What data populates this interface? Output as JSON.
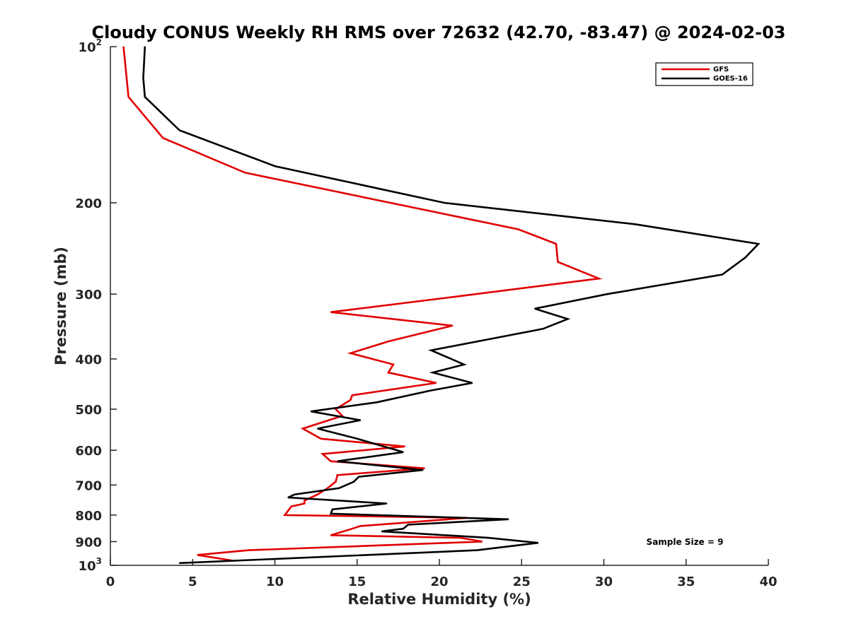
{
  "chart_data": {
    "type": "line",
    "title": "Cloudy CONUS Weekly RH RMS over 72632 (42.70, -83.47) @ 2024-02-03",
    "xlabel": "Relative Humidity (%)",
    "ylabel": "Pressure (mb)",
    "xlim": [
      0,
      40
    ],
    "ylim": [
      100,
      1000
    ],
    "y_scale": "log",
    "y_reversed": true,
    "x_ticks": [
      0,
      5,
      10,
      15,
      20,
      25,
      30,
      35,
      40
    ],
    "y_ticks": [
      {
        "value": 100,
        "base": "10",
        "exp": "2"
      },
      {
        "value": 200,
        "label": "200"
      },
      {
        "value": 300,
        "label": "300"
      },
      {
        "value": 400,
        "label": "400"
      },
      {
        "value": 500,
        "label": "500"
      },
      {
        "value": 600,
        "label": "600"
      },
      {
        "value": 700,
        "label": "700"
      },
      {
        "value": 800,
        "label": "800"
      },
      {
        "value": 900,
        "label": "900"
      },
      {
        "value": 1000,
        "base": "10",
        "exp": "3"
      }
    ],
    "grid": false,
    "legend_position": "top-right",
    "annotation": "Sample Size = 9",
    "series": [
      {
        "name": "GFS",
        "color": "#e00000",
        "points": [
          [
            0.8,
            100
          ],
          [
            1.1,
            125
          ],
          [
            3.2,
            150
          ],
          [
            8.2,
            175
          ],
          [
            24.8,
            225
          ],
          [
            27.1,
            240
          ],
          [
            27.2,
            260
          ],
          [
            29.7,
            280
          ],
          [
            20.4,
            305
          ],
          [
            13.4,
            325
          ],
          [
            20.8,
            345
          ],
          [
            16.9,
            370
          ],
          [
            14.6,
            390
          ],
          [
            17.2,
            410
          ],
          [
            16.9,
            425
          ],
          [
            19.8,
            445
          ],
          [
            14.7,
            470
          ],
          [
            14.6,
            480
          ],
          [
            13.7,
            500
          ],
          [
            14.1,
            515
          ],
          [
            11.7,
            545
          ],
          [
            12.8,
            570
          ],
          [
            17.9,
            590
          ],
          [
            12.9,
            610
          ],
          [
            13.4,
            630
          ],
          [
            19.1,
            650
          ],
          [
            13.8,
            670
          ],
          [
            13.7,
            690
          ],
          [
            13.2,
            710
          ],
          [
            12.6,
            730
          ],
          [
            11.8,
            750
          ],
          [
            11.8,
            760
          ],
          [
            11.0,
            770
          ],
          [
            10.6,
            800
          ],
          [
            21.7,
            810
          ],
          [
            15.2,
            840
          ],
          [
            14.7,
            850
          ],
          [
            13.4,
            875
          ],
          [
            21.3,
            885
          ],
          [
            22.6,
            900
          ],
          [
            8.4,
            935
          ],
          [
            5.3,
            955
          ],
          [
            7.5,
            980
          ]
        ]
      },
      {
        "name": "GOES-16",
        "color": "#000000",
        "points": [
          [
            2.1,
            100
          ],
          [
            2.0,
            115
          ],
          [
            2.1,
            125
          ],
          [
            4.2,
            145
          ],
          [
            10.0,
            170
          ],
          [
            20.3,
            200
          ],
          [
            31.9,
            220
          ],
          [
            39.4,
            240
          ],
          [
            38.6,
            255
          ],
          [
            37.2,
            275
          ],
          [
            30.2,
            300
          ],
          [
            25.8,
            320
          ],
          [
            27.8,
            335
          ],
          [
            26.3,
            350
          ],
          [
            19.5,
            385
          ],
          [
            21.5,
            410
          ],
          [
            19.6,
            425
          ],
          [
            22.0,
            445
          ],
          [
            19.5,
            460
          ],
          [
            16.2,
            485
          ],
          [
            12.2,
            505
          ],
          [
            15.2,
            525
          ],
          [
            12.6,
            545
          ],
          [
            15.0,
            570
          ],
          [
            17.8,
            605
          ],
          [
            13.8,
            630
          ],
          [
            19.0,
            655
          ],
          [
            15.1,
            675
          ],
          [
            14.8,
            690
          ],
          [
            13.9,
            710
          ],
          [
            11.2,
            730
          ],
          [
            10.8,
            740
          ],
          [
            16.8,
            760
          ],
          [
            13.5,
            780
          ],
          [
            13.4,
            795
          ],
          [
            24.2,
            815
          ],
          [
            18.1,
            835
          ],
          [
            17.8,
            850
          ],
          [
            16.5,
            860
          ],
          [
            23.0,
            885
          ],
          [
            26.0,
            905
          ],
          [
            22.3,
            935
          ],
          [
            4.2,
            990
          ]
        ]
      }
    ]
  }
}
